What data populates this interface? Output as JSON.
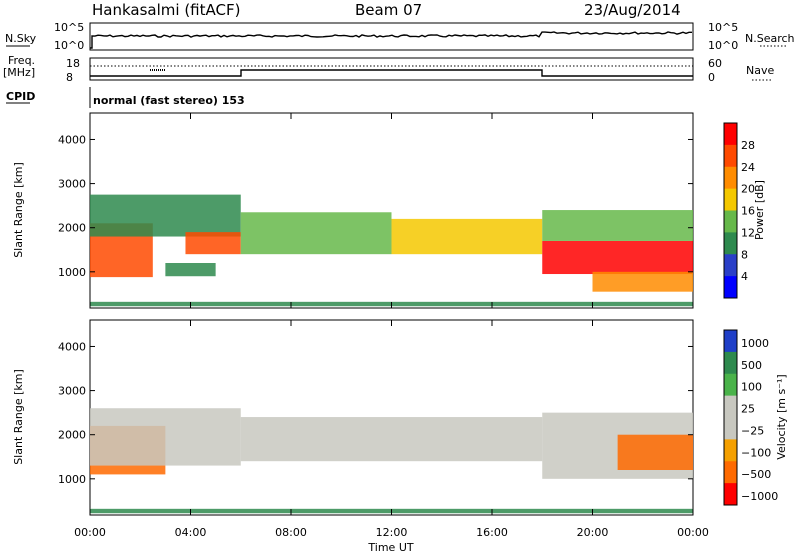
{
  "header": {
    "radar": "Hankasalmi (fitACF)",
    "beam": "Beam 07",
    "date": "23/Aug/2014"
  },
  "top_panels": {
    "nsky_label": "N.Sky",
    "nsky_ticks": [
      "10^5",
      "10^0"
    ],
    "nsearch_label": "N.Search",
    "nsearch_ticks": [
      "10^5",
      "10^0"
    ],
    "freq_label_1": "Freq.",
    "freq_label_2": "[MHz]",
    "freq_ticks": [
      "18",
      "8"
    ],
    "nave_label": "Nave",
    "nave_ticks": [
      "60",
      "0"
    ],
    "cpid_label": "CPID",
    "cpid_text": "normal (fast stereo) 153"
  },
  "chart_data": [
    {
      "type": "heatmap",
      "quantity": "Power",
      "xlabel": "Time UT",
      "ylabel": "Slant Range [km]",
      "colorbar_label": "Power [dB]",
      "xlim": [
        0,
        24
      ],
      "ylim": [
        180,
        4600
      ],
      "x_ticks": [
        "00:00",
        "04:00",
        "08:00",
        "12:00",
        "16:00",
        "20:00",
        "00:00"
      ],
      "y_ticks": [
        1000,
        2000,
        3000,
        4000
      ],
      "colorbar_ticks": [
        "28",
        "24",
        "20",
        "16",
        "12",
        "8",
        "4"
      ],
      "colorbar_colors": [
        "#ff0000",
        "#ff4a00",
        "#ff8c00",
        "#f4c800",
        "#66b84a",
        "#2e8a4e",
        "#2a3fc8",
        "#0000ff"
      ],
      "bands": [
        {
          "t0": 0,
          "t1": 2.5,
          "r0": 880,
          "r1": 2100,
          "level": 26
        },
        {
          "t0": 0,
          "t1": 6,
          "r0": 1800,
          "r1": 2750,
          "level": 10
        },
        {
          "t0": 3.8,
          "t1": 6,
          "r0": 1400,
          "r1": 1900,
          "level": 24
        },
        {
          "t0": 3,
          "t1": 5,
          "r0": 900,
          "r1": 1200,
          "level": 10
        },
        {
          "t0": 6,
          "t1": 12,
          "r0": 1400,
          "r1": 2350,
          "level": 12
        },
        {
          "t0": 12,
          "t1": 18,
          "r0": 1400,
          "r1": 2200,
          "level": 16
        },
        {
          "t0": 18,
          "t1": 24,
          "r0": 950,
          "r1": 1700,
          "level": 28
        },
        {
          "t0": 18,
          "t1": 24,
          "r0": 1700,
          "r1": 2400,
          "level": 12
        },
        {
          "t0": 20,
          "t1": 24,
          "r0": 550,
          "r1": 1000,
          "level": 20
        },
        {
          "t0": 0,
          "t1": 24,
          "r0": 220,
          "r1": 320,
          "level": 8
        }
      ]
    },
    {
      "type": "heatmap",
      "quantity": "Velocity",
      "xlabel": "Time UT",
      "ylabel": "Slant Range [km]",
      "colorbar_label": "Velocity [m s⁻¹]",
      "xlim": [
        0,
        24
      ],
      "ylim": [
        180,
        4600
      ],
      "x_ticks": [
        "00:00",
        "04:00",
        "08:00",
        "12:00",
        "16:00",
        "20:00",
        "00:00"
      ],
      "y_ticks": [
        1000,
        2000,
        3000,
        4000
      ],
      "colorbar_ticks": [
        "1000",
        "500",
        "100",
        "25",
        "−25",
        "−100",
        "−500",
        "−1000"
      ],
      "colorbar_colors": [
        "#1f3fc8",
        "#2e8a4e",
        "#4ab34a",
        "#c8c8c0",
        "#c8c8c0",
        "#f5a000",
        "#ff6a00",
        "#ff0000"
      ],
      "bands": [
        {
          "t0": 0,
          "t1": 3,
          "r0": 1100,
          "r1": 2200,
          "level": -150
        },
        {
          "t0": 0,
          "t1": 6,
          "r0": 1300,
          "r1": 2600,
          "level": 0
        },
        {
          "t0": 6,
          "t1": 18,
          "r0": 1400,
          "r1": 2400,
          "level": 0
        },
        {
          "t0": 18,
          "t1": 24,
          "r0": 1000,
          "r1": 2500,
          "level": 0
        },
        {
          "t0": 21,
          "t1": 24,
          "r0": 1200,
          "r1": 2000,
          "level": -150
        },
        {
          "t0": 0,
          "t1": 24,
          "r0": 220,
          "r1": 320,
          "level": 200
        }
      ]
    }
  ]
}
